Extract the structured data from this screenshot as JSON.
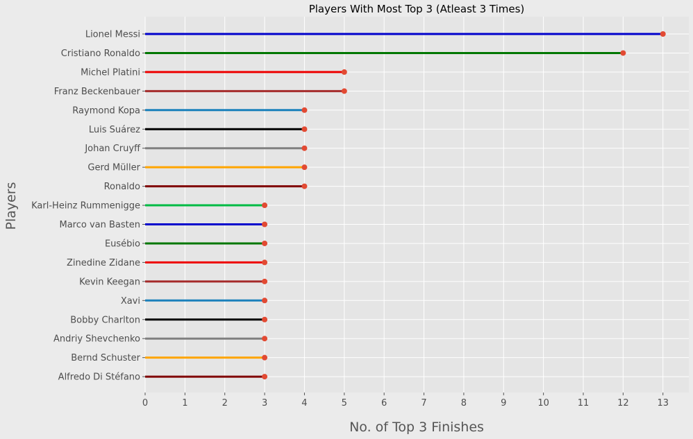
{
  "chart_data": {
    "type": "lollipop",
    "title": "Players With Most Top 3 (Atleast 3 Times)",
    "xlabel": "No. of Top 3 Finishes",
    "ylabel": "Players",
    "xlim": [
      0,
      13.65
    ],
    "xticks": [
      0,
      1,
      2,
      3,
      4,
      5,
      6,
      7,
      8,
      9,
      10,
      11,
      12,
      13
    ],
    "grid": true,
    "marker_color": "#e24a33",
    "plot_background": "#e5e5e5",
    "figure_background": "#ebebeb",
    "categories": [
      "Lionel Messi",
      "Cristiano Ronaldo",
      "Michel Platini",
      "Franz Beckenbauer",
      "Raymond Kopa",
      "Luis Suárez",
      "Johan Cruyff",
      "Gerd Müller",
      "Ronaldo",
      "Karl-Heinz Rummenigge",
      "Marco van Basten",
      "Eusébio",
      "Zinedine Zidane",
      "Kevin Keegan",
      "Xavi",
      "Bobby Charlton",
      "Andriy Shevchenko",
      "Bernd Schuster",
      "Alfredo Di Stéfano"
    ],
    "values": [
      13,
      12,
      5,
      5,
      4,
      4,
      4,
      4,
      4,
      3,
      3,
      3,
      3,
      3,
      3,
      3,
      3,
      3,
      3
    ],
    "colors": [
      "#0000cc",
      "#007700",
      "#ee0000",
      "#a52a2a",
      "#1a80bb",
      "#000000",
      "#808080",
      "#ffa500",
      "#800000",
      "#00bb44",
      "#0000cc",
      "#007700",
      "#ee0000",
      "#a52a2a",
      "#1a80bb",
      "#000000",
      "#808080",
      "#ffa500",
      "#800000"
    ]
  }
}
